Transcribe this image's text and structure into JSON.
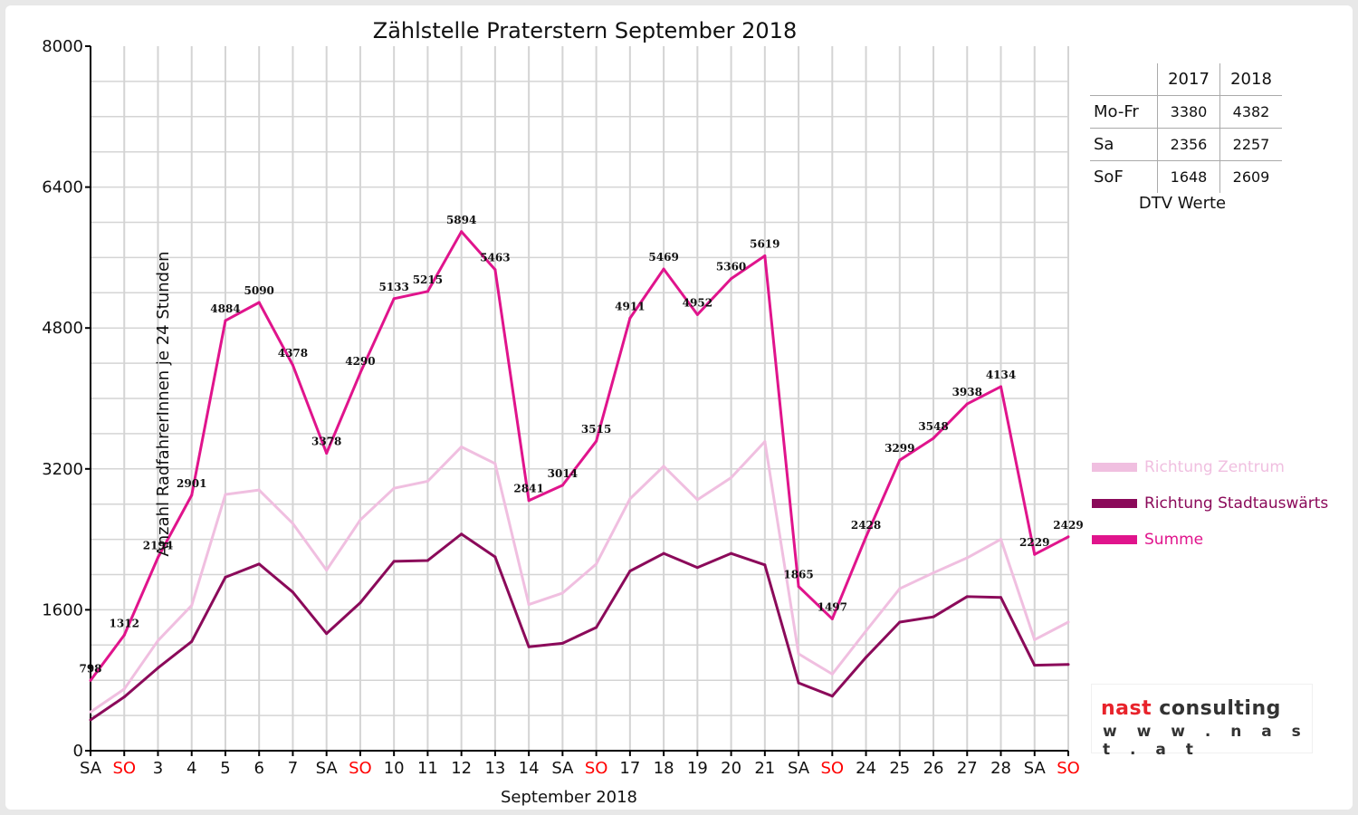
{
  "title": "Zählstelle Praterstern September 2018",
  "ylabel": "Anzahl RadfahrerInnen je 24 Stunden",
  "xlabel": "September 2018",
  "dtv_table": {
    "headers": [
      "",
      "2017",
      "2018"
    ],
    "rows": [
      {
        "label": "Mo-Fr",
        "v2017": "3380",
        "v2018": "4382"
      },
      {
        "label": "Sa",
        "v2017": "2356",
        "v2018": "2257"
      },
      {
        "label": "SoF",
        "v2017": "1648",
        "v2018": "2609"
      }
    ],
    "caption": "DTV Werte"
  },
  "logo": {
    "brand_a": "nast",
    "brand_b": " consulting",
    "url": "w w w . n a s t . a t"
  },
  "colors": {
    "zentrum": "#f0bfe0",
    "stadtauswaerts": "#8b0a5a",
    "summe": "#e0148c",
    "weekend_tick": "#ff0000",
    "grid": "#d4d4d4"
  },
  "chart_data": {
    "type": "line",
    "title": "Zählstelle Praterstern September 2018",
    "xlabel": "September 2018",
    "ylabel": "Anzahl RadfahrerInnen je 24 Stunden",
    "ylim": [
      0,
      8000
    ],
    "yticks": [
      0,
      1600,
      3200,
      4800,
      6400,
      8000
    ],
    "grid": true,
    "legend_position": "right",
    "x": [
      "SA",
      "SO",
      "3",
      "4",
      "5",
      "6",
      "7",
      "SA",
      "SO",
      "10",
      "11",
      "12",
      "13",
      "14",
      "SA",
      "SO",
      "17",
      "18",
      "19",
      "20",
      "21",
      "SA",
      "SO",
      "24",
      "25",
      "26",
      "27",
      "28",
      "SA",
      "SO"
    ],
    "weekend_flags": [
      "SA",
      "SO"
    ],
    "series": [
      {
        "name": "Richtung Zentrum",
        "color_key": "zentrum",
        "values": [
          440,
          700,
          1250,
          1650,
          2910,
          2960,
          2580,
          2050,
          2620,
          2980,
          3060,
          3450,
          3260,
          1660,
          1790,
          2120,
          2860,
          3230,
          2850,
          3100,
          3510,
          1100,
          870,
          1360,
          1840,
          2020,
          2190,
          2400,
          1260,
          1460
        ]
      },
      {
        "name": "Richtung Stadtauswärts",
        "color_key": "stadtauswaerts",
        "values": [
          350,
          610,
          940,
          1240,
          1970,
          2120,
          1800,
          1330,
          1680,
          2150,
          2160,
          2460,
          2200,
          1180,
          1220,
          1400,
          2040,
          2240,
          2080,
          2240,
          2110,
          770,
          620,
          1060,
          1460,
          1520,
          1750,
          1740,
          970,
          980
        ]
      },
      {
        "name": "Summe",
        "color_key": "summe",
        "values": [
          798,
          1312,
          2194,
          2901,
          4884,
          5090,
          4378,
          3378,
          4290,
          5133,
          5215,
          5894,
          5463,
          2841,
          3014,
          3515,
          4911,
          5469,
          4952,
          5360,
          5619,
          1865,
          1497,
          2428,
          3299,
          3548,
          3938,
          4134,
          2229,
          2429
        ],
        "labels": [
          "798",
          "1312",
          "2194",
          "2901",
          "4884",
          "5090",
          "4378",
          "3378",
          "4290",
          "5133",
          "5215",
          "5894",
          "5463",
          "2841",
          "3014",
          "3515",
          "4911",
          "5469",
          "4952",
          "5360",
          "5619",
          "1865",
          "1497",
          "2428",
          "3299",
          "3548",
          "3938",
          "4134",
          "2229",
          "2429"
        ]
      }
    ]
  }
}
